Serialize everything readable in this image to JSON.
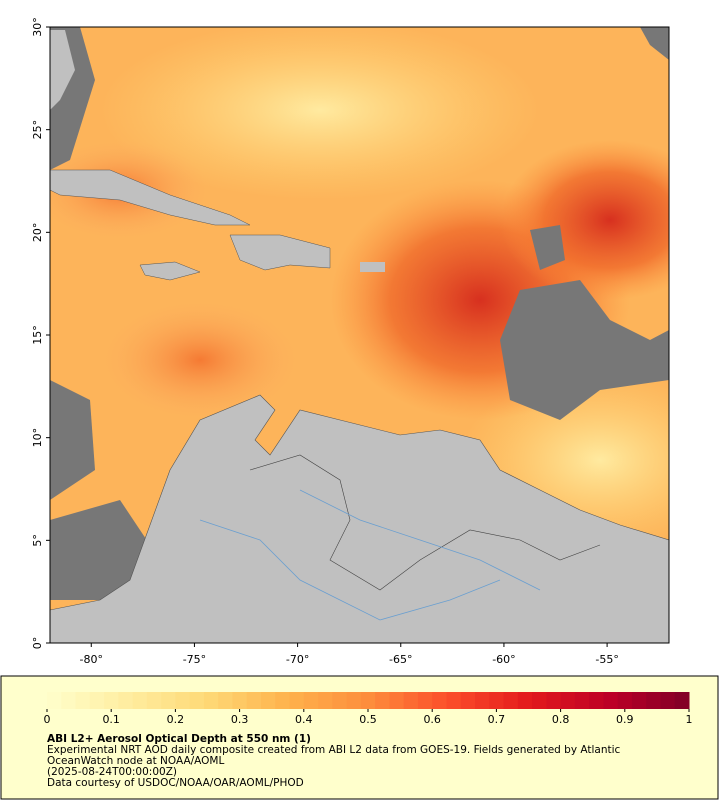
{
  "map": {
    "xlim": [
      -82,
      -52
    ],
    "ylim": [
      0,
      30
    ],
    "xticks": [
      {
        "value": -80,
        "label": "-80°"
      },
      {
        "value": -75,
        "label": "-75°"
      },
      {
        "value": -70,
        "label": "-70°"
      },
      {
        "value": -65,
        "label": "-65°"
      },
      {
        "value": -60,
        "label": "-60°"
      },
      {
        "value": -55,
        "label": "-55°"
      }
    ],
    "yticks": [
      {
        "value": 0,
        "label": "0°"
      },
      {
        "value": 5,
        "label": "5°"
      },
      {
        "value": 10,
        "label": "10°"
      },
      {
        "value": 15,
        "label": "15°"
      },
      {
        "value": 20,
        "label": "20°"
      },
      {
        "value": 25,
        "label": "25°"
      },
      {
        "value": 30,
        "label": "30°"
      }
    ]
  },
  "colorbar": {
    "lim": [
      0,
      1
    ],
    "ticks": [
      0,
      0.1,
      0.2,
      0.3,
      0.4,
      0.5,
      0.6,
      0.7,
      0.8,
      0.9,
      1
    ],
    "colors": [
      "#ffffcc",
      "#ffeda0",
      "#fed976",
      "#feb24c",
      "#fd8d3c",
      "#fc4e2a",
      "#e31a1c",
      "#bd0026",
      "#800026"
    ]
  },
  "caption": {
    "title": "ABI L2+ Aerosol Optical Depth at 550 nm (1)",
    "lines": [
      "Experimental NRT AOD daily composite created from ABI L2 data from GOES-19. Fields generated by Atlantic",
      "OceanWatch node at NOAA/AOML",
      "(2025-08-24T00:00:00Z)",
      "Data courtesy of USDOC/NOAA/OAR/AOML/PHOD"
    ]
  }
}
